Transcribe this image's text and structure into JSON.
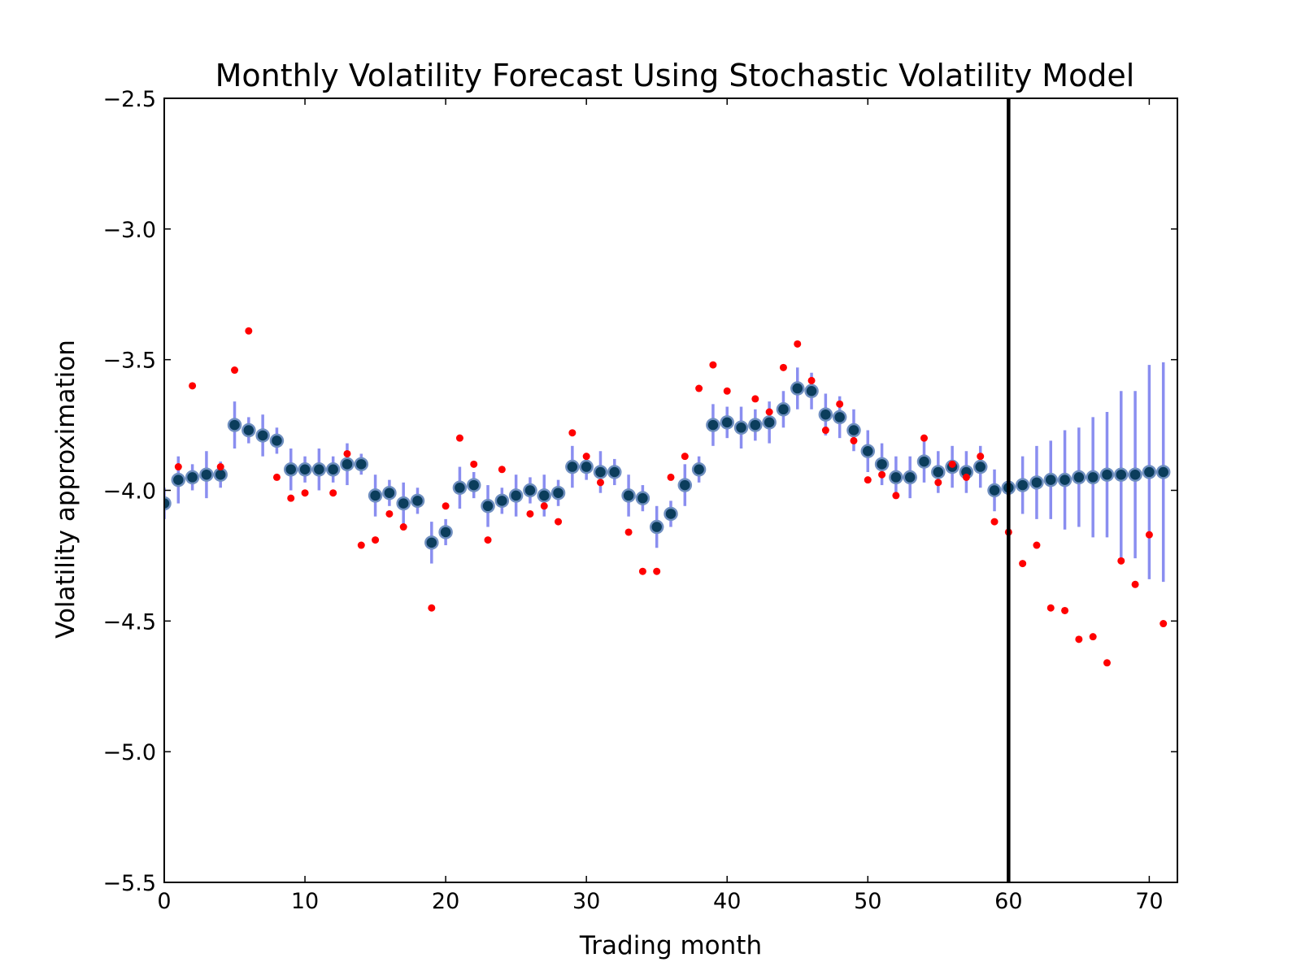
{
  "chart_data": {
    "type": "scatter",
    "title": "Monthly Volatility Forecast Using Stochastic Volatility Model",
    "xlabel": "Trading month",
    "ylabel": "Volatility approximation",
    "xlim": [
      0,
      72
    ],
    "ylim": [
      -5.5,
      -2.5
    ],
    "xticks": [
      0,
      10,
      20,
      30,
      40,
      50,
      60,
      70
    ],
    "xtick_labels": [
      "0",
      "10",
      "20",
      "30",
      "40",
      "50",
      "60",
      "70"
    ],
    "yticks": [
      -5.5,
      -5.0,
      -4.5,
      -4.0,
      -3.5,
      -3.0,
      -2.5
    ],
    "ytick_labels": [
      "−5.5",
      "−5.0",
      "−4.5",
      "−4.0",
      "−3.5",
      "−3.0",
      "−2.5"
    ],
    "grid": false,
    "vertical_line_x": 60,
    "colors": {
      "estimate_marker": "#0b3d5c",
      "estimate_edge": "#6f8fc0",
      "error_bar": "#8a8ef0",
      "observed": "#ff0000",
      "vline": "#000000"
    },
    "series": [
      {
        "kind": "estimate_with_error",
        "x": [
          0,
          1,
          2,
          3,
          4,
          5,
          6,
          7,
          8,
          9,
          10,
          11,
          12,
          13,
          14,
          15,
          16,
          17,
          18,
          19,
          20,
          21,
          22,
          23,
          24,
          25,
          26,
          27,
          28,
          29,
          30,
          31,
          32,
          33,
          34,
          35,
          36,
          37,
          38,
          39,
          40,
          41,
          42,
          43,
          44,
          45,
          46,
          47,
          48,
          49,
          50,
          51,
          52,
          53,
          54,
          55,
          56,
          57,
          58,
          59,
          60,
          61,
          62,
          63,
          64,
          65,
          66,
          67,
          68,
          69,
          70,
          71
        ],
        "y": [
          -4.05,
          -3.96,
          -3.95,
          -3.94,
          -3.94,
          -3.75,
          -3.77,
          -3.79,
          -3.81,
          -3.92,
          -3.92,
          -3.92,
          -3.92,
          -3.9,
          -3.9,
          -4.02,
          -4.01,
          -4.05,
          -4.04,
          -4.2,
          -4.16,
          -3.99,
          -3.98,
          -4.06,
          -4.04,
          -4.02,
          -4.0,
          -4.02,
          -4.01,
          -3.91,
          -3.91,
          -3.93,
          -3.93,
          -4.02,
          -4.03,
          -4.14,
          -4.09,
          -3.98,
          -3.92,
          -3.75,
          -3.74,
          -3.76,
          -3.75,
          -3.74,
          -3.69,
          -3.61,
          -3.62,
          -3.71,
          -3.72,
          -3.77,
          -3.85,
          -3.9,
          -3.95,
          -3.95,
          -3.89,
          -3.93,
          -3.91,
          -3.93,
          -3.91,
          -4.0,
          -3.99,
          -3.98,
          -3.97,
          -3.96,
          -3.96,
          -3.95,
          -3.95,
          -3.94,
          -3.94,
          -3.94,
          -3.93,
          -3.93
        ],
        "err": [
          0.06,
          0.09,
          0.05,
          0.09,
          0.05,
          0.09,
          0.05,
          0.08,
          0.05,
          0.08,
          0.05,
          0.08,
          0.05,
          0.08,
          0.04,
          0.08,
          0.05,
          0.08,
          0.05,
          0.08,
          0.05,
          0.08,
          0.05,
          0.08,
          0.05,
          0.08,
          0.05,
          0.08,
          0.05,
          0.08,
          0.05,
          0.08,
          0.05,
          0.08,
          0.05,
          0.08,
          0.05,
          0.08,
          0.05,
          0.08,
          0.06,
          0.08,
          0.06,
          0.08,
          0.07,
          0.08,
          0.07,
          0.08,
          0.08,
          0.08,
          0.08,
          0.08,
          0.08,
          0.08,
          0.08,
          0.08,
          0.08,
          0.08,
          0.08,
          0.08,
          0.05,
          0.11,
          0.14,
          0.15,
          0.19,
          0.19,
          0.23,
          0.24,
          0.32,
          0.32,
          0.41,
          0.42
        ]
      },
      {
        "kind": "observed",
        "x": [
          1,
          2,
          4,
          5,
          6,
          8,
          9,
          10,
          12,
          13,
          14,
          15,
          16,
          17,
          19,
          20,
          21,
          22,
          23,
          24,
          26,
          27,
          28,
          29,
          30,
          31,
          33,
          34,
          35,
          36,
          37,
          38,
          39,
          40,
          42,
          43,
          44,
          45,
          46,
          47,
          48,
          49,
          50,
          51,
          52,
          54,
          55,
          56,
          57,
          58,
          59,
          60,
          61,
          62,
          63,
          64,
          65,
          66,
          67,
          68,
          69,
          70,
          71
        ],
        "y": [
          -3.91,
          -3.6,
          -3.91,
          -3.54,
          -3.39,
          -3.95,
          -4.03,
          -4.01,
          -4.01,
          -3.86,
          -4.21,
          -4.19,
          -4.09,
          -4.14,
          -4.45,
          -4.06,
          -3.8,
          -3.9,
          -4.19,
          -3.92,
          -4.09,
          -4.06,
          -4.12,
          -3.78,
          -3.87,
          -3.97,
          -4.16,
          -4.31,
          -4.31,
          -3.95,
          -3.87,
          -3.61,
          -3.52,
          -3.62,
          -3.65,
          -3.7,
          -3.53,
          -3.44,
          -3.58,
          -3.77,
          -3.67,
          -3.81,
          -3.96,
          -3.94,
          -4.02,
          -3.8,
          -3.97,
          -3.9,
          -3.95,
          -3.87,
          -4.12,
          -4.16,
          -4.28,
          -4.21,
          -4.45,
          -4.46,
          -4.57,
          -4.56,
          -4.66,
          -4.27,
          -4.36,
          -4.17,
          -4.51
        ]
      }
    ]
  }
}
